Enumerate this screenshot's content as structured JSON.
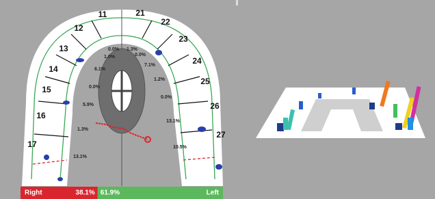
{
  "teeth_right": [
    "11",
    "12",
    "13",
    "14",
    "15",
    "16",
    "17"
  ],
  "teeth_left": [
    "21",
    "22",
    "23",
    "24",
    "25",
    "26",
    "27"
  ],
  "percent_right": [
    "0.0%",
    "1.0%",
    "6.1%",
    "0.0%",
    "5.9%",
    "1.3%",
    "13.1%"
  ],
  "percent_left": [
    "1.3%",
    "0.0%",
    "7.1%",
    "1.2%",
    "0.0%",
    "13.1%",
    "10.5%"
  ],
  "balance": {
    "right": {
      "label": "Right",
      "value": 38.1,
      "value_label": "38.1%",
      "color": "#d9262e"
    },
    "left": {
      "label": "Left",
      "value": 61.9,
      "value_label": "61.9%",
      "color": "#5cb85c"
    }
  }
}
